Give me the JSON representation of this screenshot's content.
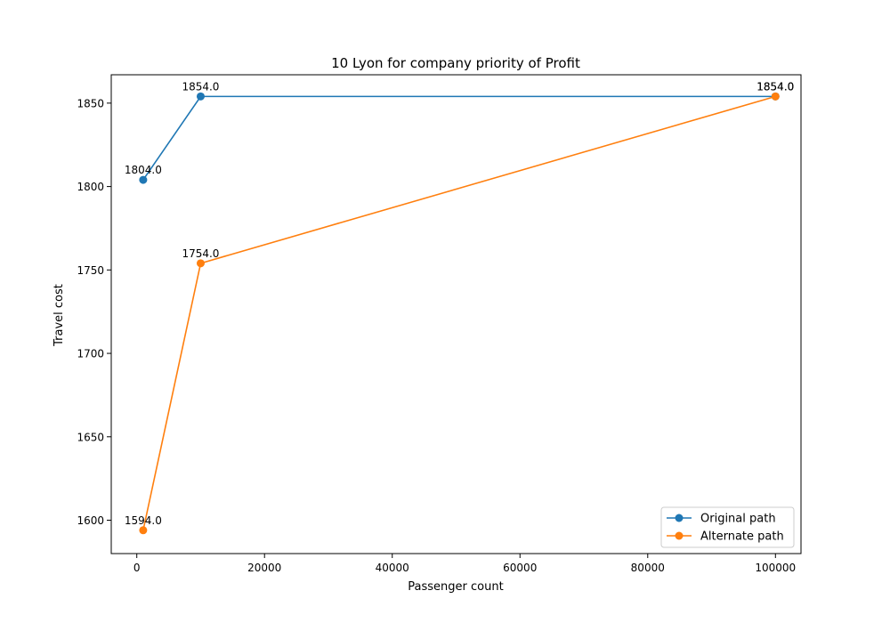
{
  "chart_data": {
    "type": "line",
    "title": "10 Lyon for company priority of Profit",
    "xlabel": "Passenger count",
    "ylabel": "Travel cost",
    "xlim": [
      -4000,
      104000
    ],
    "ylim": [
      1580,
      1867
    ],
    "xticks": [
      0,
      20000,
      40000,
      60000,
      80000,
      100000
    ],
    "yticks": [
      1600,
      1650,
      1700,
      1750,
      1800,
      1850
    ],
    "grid": false,
    "legend_position": "lower-right",
    "series": [
      {
        "name": "Original path",
        "color": "#1f77b4",
        "x": [
          1000,
          10000,
          100000
        ],
        "y": [
          1804.0,
          1854.0,
          1854.0
        ],
        "labels": [
          "1804.0",
          "1854.0",
          "1854.0"
        ]
      },
      {
        "name": "Alternate path",
        "color": "#ff7f0e",
        "x": [
          1000,
          10000,
          100000
        ],
        "y": [
          1594.0,
          1754.0,
          1854.0
        ],
        "labels": [
          "1594.0",
          "1754.0",
          "1854.0"
        ]
      }
    ]
  }
}
